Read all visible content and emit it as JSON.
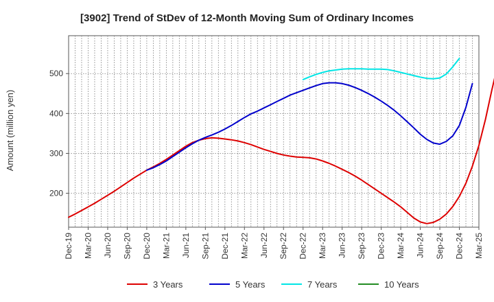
{
  "chart_data": {
    "type": "line",
    "title": "[3902]  Trend of StDev of 12-Month Moving Sum of Ordinary Incomes",
    "xlabel": "",
    "ylabel": "Amount (million yen)",
    "ylim": [
      115,
      595
    ],
    "yticks": [
      200,
      300,
      400,
      500
    ],
    "x_tick_labels": [
      "Dec-19",
      "Mar-20",
      "Jun-20",
      "Sep-20",
      "Dec-20",
      "Mar-21",
      "Jun-21",
      "Sep-21",
      "Dec-21",
      "Mar-22",
      "Jun-22",
      "Sep-22",
      "Dec-22",
      "Mar-23",
      "Jun-23",
      "Sep-23",
      "Dec-23",
      "Mar-24",
      "Jun-24",
      "Sep-24",
      "Dec-24",
      "Mar-25"
    ],
    "grid": true,
    "legend_position": "bottom",
    "series": [
      {
        "name": "3 Years",
        "color": "#dd0000",
        "start_index": 0,
        "values": [
          140,
          148,
          157,
          166,
          175,
          185,
          195,
          205,
          216,
          227,
          238,
          248,
          258,
          266,
          275,
          285,
          296,
          307,
          318,
          327,
          333,
          337,
          339,
          338,
          336,
          334,
          331,
          327,
          322,
          316,
          310,
          305,
          300,
          296,
          293,
          291,
          290,
          289,
          286,
          281,
          275,
          268,
          260,
          252,
          243,
          233,
          222,
          211,
          200,
          189,
          178,
          166,
          152,
          138,
          128,
          124,
          127,
          135,
          148,
          167,
          192,
          225,
          268,
          320,
          385,
          460,
          530,
          583
        ]
      },
      {
        "name": "5 Years",
        "color": "#0000cc",
        "start_index": 12,
        "values": [
          258,
          264,
          272,
          281,
          292,
          303,
          314,
          324,
          333,
          340,
          346,
          353,
          361,
          370,
          380,
          390,
          399,
          406,
          414,
          422,
          430,
          438,
          446,
          452,
          458,
          464,
          470,
          475,
          477,
          477,
          475,
          471,
          465,
          458,
          450,
          441,
          431,
          420,
          408,
          394,
          379,
          364,
          348,
          335,
          326,
          323,
          330,
          344,
          370,
          415,
          475
        ]
      },
      {
        "name": "7 Years",
        "color": "#00e5e5",
        "start_index": 36,
        "values": [
          485,
          492,
          498,
          503,
          507,
          509,
          511,
          512,
          512,
          512,
          511,
          511,
          511,
          510,
          507,
          503,
          499,
          495,
          491,
          488,
          487,
          489,
          499,
          517,
          538
        ]
      },
      {
        "name": "10 Years",
        "color": "#228b22",
        "start_index": 0,
        "values": []
      }
    ]
  }
}
